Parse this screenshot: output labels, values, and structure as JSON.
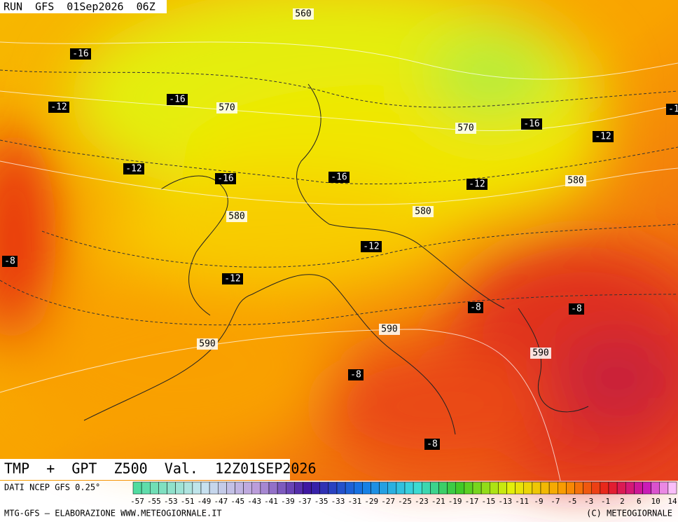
{
  "header": {
    "run": "RUN  GFS  01Sep2026  06Z"
  },
  "map": {
    "labels": [
      "560",
      "-16",
      "-16",
      "-12",
      "570",
      "570",
      "-16",
      "-12",
      "-12",
      "-16",
      "-16",
      "-12",
      "580",
      "580",
      "580",
      "-12",
      "-8",
      "-12",
      "-8",
      "-8",
      "590",
      "590",
      "590",
      "-8",
      "-8",
      "-1"
    ]
  },
  "footer": {
    "title": "TMP  +  GPT  Z500  Val.  12Z01SEP2026",
    "source": "DATI NCEP GFS 0.25°",
    "credit": "MTG-GFS — ELABORAZIONE WWW.METEOGIORNALE.IT",
    "copyright": "(C) METEOGIORNALE",
    "scale": [
      "-57",
      "-55",
      "-53",
      "-51",
      "-49",
      "-47",
      "-45",
      "-43",
      "-41",
      "-39",
      "-37",
      "-35",
      "-33",
      "-31",
      "-29",
      "-27",
      "-25",
      "-23",
      "-21",
      "-19",
      "-17",
      "-15",
      "-13",
      "-11",
      "-9",
      "-7",
      "-5",
      "-3",
      "-1",
      "2",
      "6",
      "10",
      "14"
    ]
  }
}
